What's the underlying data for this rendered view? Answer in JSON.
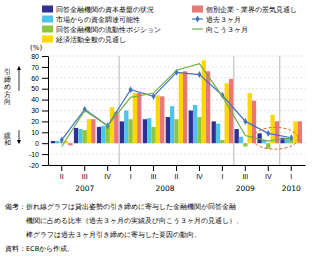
{
  "chart_data": {
    "type": "bar",
    "categories": [
      "II",
      "III",
      "IV",
      "I",
      "III",
      "II",
      "IV",
      "I",
      "III",
      "IV",
      "I"
    ],
    "series": [
      {
        "name": "回答金融機関の資本基盤の状況",
        "type": "bar",
        "color": "#2e3192",
        "values": [
          2,
          14,
          15,
          20,
          22,
          24,
          30,
          20,
          13,
          9,
          5
        ]
      },
      {
        "name": "市場からの資金調達可能性",
        "type": "bar",
        "color": "#4fc3e8",
        "values": [
          2,
          13,
          16,
          30,
          23,
          34,
          35,
          18,
          6,
          3,
          5
        ]
      },
      {
        "name": "回答金融機関の流動性ポジション",
        "type": "bar",
        "color": "#8dc63f",
        "values": [
          1,
          12,
          17,
          22,
          15,
          22,
          24,
          3,
          -3,
          -5,
          5
        ]
      },
      {
        "name": "経済活動全般の見通し",
        "type": "bar",
        "color": "#ffd700",
        "values": [
          2,
          22,
          33,
          46,
          44,
          65,
          76,
          55,
          46,
          26,
          20
        ]
      },
      {
        "name": "個別企業・業界の景気見通し",
        "type": "bar",
        "color": "#e87878",
        "values": [
          -2,
          22,
          29,
          46,
          43,
          66,
          66,
          59,
          39,
          20,
          20
        ]
      },
      {
        "name": "過去３ヶ月",
        "type": "line",
        "color": "#4472c4",
        "marker": "diamond",
        "values": [
          3,
          31,
          16,
          49,
          43,
          65,
          63,
          44,
          20,
          9,
          5
        ]
      },
      {
        "name": "向こう３ヶ月",
        "type": "line",
        "color": "#70ad47",
        "values": [
          -3,
          30,
          16,
          42,
          46,
          67,
          73,
          43,
          7,
          2,
          5
        ]
      }
    ],
    "ylim": [
      -20,
      80
    ],
    "yticks": [
      -20,
      -10,
      0,
      10,
      20,
      30,
      40,
      50,
      60,
      70,
      80
    ],
    "ylabel": "(%)",
    "grid": true,
    "legend": "top",
    "annotations": [
      "引締め方向",
      "緩和"
    ],
    "x_group_labels": [
      {
        "x": 1.0,
        "label": "2007"
      },
      {
        "x": 4.5,
        "label": "2008"
      },
      {
        "x": 8.0,
        "label": "2009"
      },
      {
        "x": 10.0,
        "label": "2010"
      }
    ],
    "dividers": [
      2.5,
      7.5,
      9.5
    ],
    "ellipse": {
      "x": 9.3,
      "y": 4.5,
      "width": 2.0,
      "height": 20,
      "color": "#e06010",
      "line_style": "dashed"
    },
    "notes": [
      "備考：折れ線グラフは貸出姿勢の引き締めに寄与した金融機関が回答金融",
      "　　　機関に占める比率（過去３ヶ月の実績及び向こう３ヶ月の見通し）、",
      "　　　棒グラフは過去３ヶ月引き締めに寄与した要因の動向。",
      "資料：ECBから作成。"
    ]
  }
}
